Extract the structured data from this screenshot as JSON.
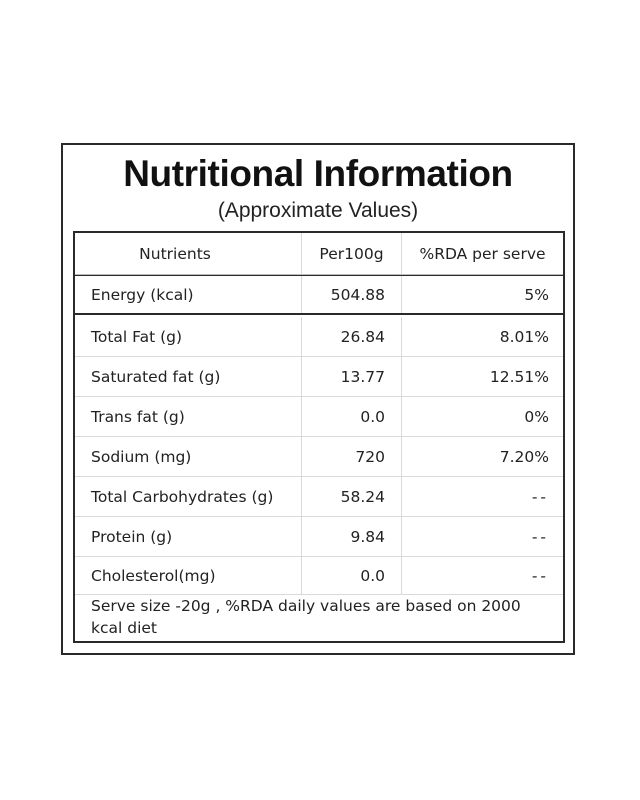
{
  "title": "Nutritional Information",
  "subtitle": "(Approximate Values)",
  "table": {
    "headers": {
      "nutrient": "Nutrients",
      "per100g": "Per100g",
      "rda": "%RDA per serve"
    },
    "rows": [
      {
        "nutrient": "Energy (kcal)",
        "per100g": "504.88",
        "rda": "5%"
      },
      {
        "nutrient": "Total Fat (g)",
        "per100g": "26.84",
        "rda": "8.01%"
      },
      {
        "nutrient": "Saturated fat (g)",
        "per100g": "13.77",
        "rda": "12.51%"
      },
      {
        "nutrient": "Trans fat (g)",
        "per100g": "0.0",
        "rda": "0%"
      },
      {
        "nutrient": "Sodium (mg)",
        "per100g": "720",
        "rda": "7.20%"
      },
      {
        "nutrient": "Total Carbohydrates (g)",
        "per100g": "58.24",
        "rda": "--"
      },
      {
        "nutrient": "Protein (g)",
        "per100g": "9.84",
        "rda": "--"
      },
      {
        "nutrient": "Cholesterol(mg)",
        "per100g": "0.0",
        "rda": "--"
      }
    ],
    "footnote": "Serve size -20g , %RDA daily values are based on 2000 kcal diet"
  }
}
